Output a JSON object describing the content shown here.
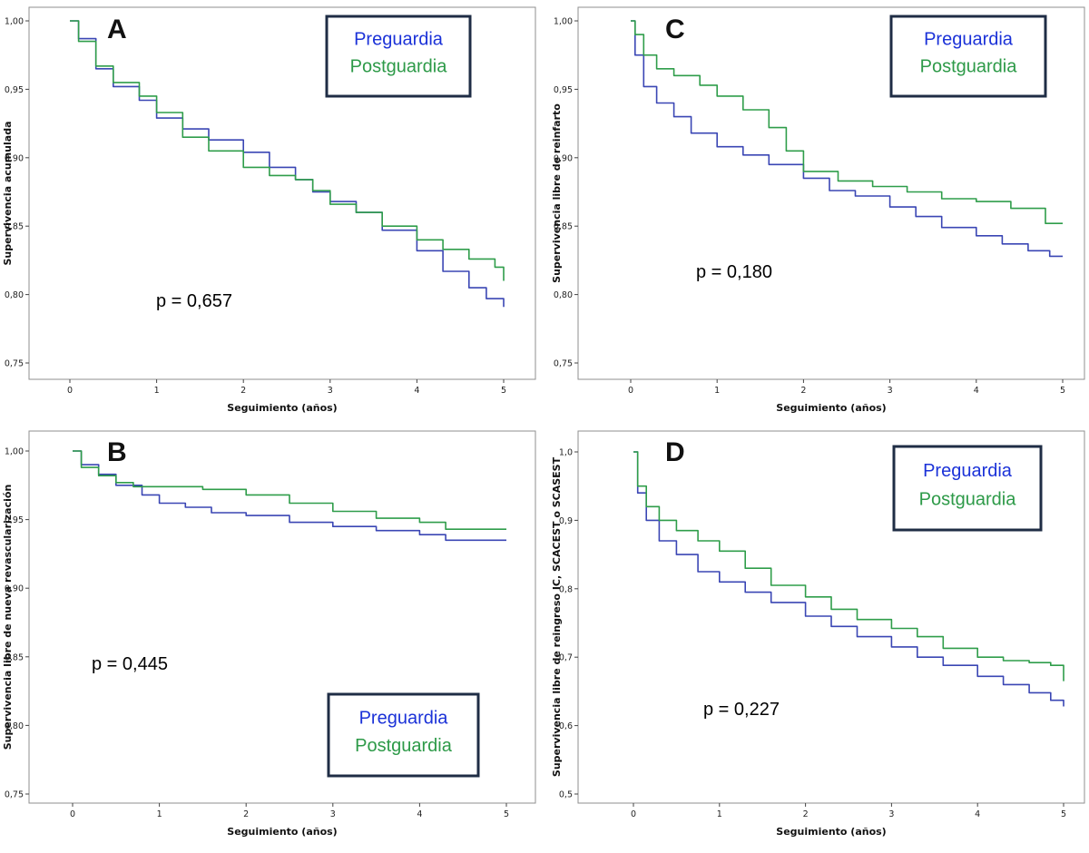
{
  "colors": {
    "pre": "#3a46b4",
    "post": "#2f9d4a",
    "pre_label": "#1b32d8",
    "post_label": "#2d9a48"
  },
  "legend": {
    "pre": "Preguardia",
    "post": "Postguardia"
  },
  "chart_data": [
    {
      "id": "A",
      "letter": "A",
      "type": "line",
      "xlabel": "Seguimiento (años)",
      "ylabel": "Supervivencia acumulada",
      "pvalue": "p = 0,657",
      "legend_position": "top-right",
      "xlim": [
        0,
        5
      ],
      "ylim": [
        0.75,
        1.0
      ],
      "xticks": [
        0,
        1,
        2,
        3,
        4,
        5
      ],
      "xtick_labels": [
        "0",
        "1",
        "2",
        "3",
        "4",
        "5"
      ],
      "yticks": [
        0.75,
        0.8,
        0.85,
        0.9,
        0.95,
        1.0
      ],
      "ytick_labels": [
        "0,75",
        "0,80",
        "0,85",
        "0,90",
        "0,95",
        "1,00"
      ],
      "series": [
        {
          "name": "Preguardia",
          "x": [
            0,
            0.1,
            0.3,
            0.5,
            0.8,
            1.0,
            1.3,
            1.6,
            2.0,
            2.3,
            2.6,
            2.8,
            3.0,
            3.3,
            3.6,
            4.0,
            4.3,
            4.6,
            4.8,
            5.0
          ],
          "y": [
            1.0,
            0.987,
            0.965,
            0.952,
            0.942,
            0.929,
            0.921,
            0.913,
            0.904,
            0.893,
            0.884,
            0.875,
            0.868,
            0.86,
            0.847,
            0.832,
            0.817,
            0.805,
            0.797,
            0.791
          ]
        },
        {
          "name": "Postguardia",
          "x": [
            0,
            0.1,
            0.3,
            0.5,
            0.8,
            1.0,
            1.3,
            1.6,
            2.0,
            2.3,
            2.6,
            2.8,
            3.0,
            3.3,
            3.6,
            4.0,
            4.3,
            4.6,
            4.9,
            5.0
          ],
          "y": [
            1.0,
            0.985,
            0.967,
            0.955,
            0.945,
            0.933,
            0.915,
            0.905,
            0.893,
            0.887,
            0.884,
            0.876,
            0.866,
            0.86,
            0.85,
            0.84,
            0.833,
            0.826,
            0.82,
            0.81
          ]
        }
      ]
    },
    {
      "id": "C",
      "letter": "C",
      "type": "line",
      "xlabel": "Seguimiento (años)",
      "ylabel": "Supervivencia libre de reinfarto",
      "pvalue": "p = 0,180",
      "legend_position": "top-right",
      "xlim": [
        0,
        5
      ],
      "ylim": [
        0.75,
        1.0
      ],
      "xticks": [
        0,
        1,
        2,
        3,
        4,
        5
      ],
      "xtick_labels": [
        "0",
        "1",
        "2",
        "3",
        "4",
        "5"
      ],
      "yticks": [
        0.75,
        0.8,
        0.85,
        0.9,
        0.95,
        1.0
      ],
      "ytick_labels": [
        "0,75",
        "0,80",
        "0,85",
        "0,90",
        "0,95",
        "1,00"
      ],
      "series": [
        {
          "name": "Preguardia",
          "x": [
            0,
            0.05,
            0.15,
            0.3,
            0.5,
            0.7,
            1.0,
            1.3,
            1.6,
            2.0,
            2.3,
            2.6,
            3.0,
            3.3,
            3.6,
            4.0,
            4.3,
            4.6,
            4.85,
            5.0
          ],
          "y": [
            1.0,
            0.975,
            0.952,
            0.94,
            0.93,
            0.918,
            0.908,
            0.902,
            0.895,
            0.885,
            0.876,
            0.872,
            0.864,
            0.857,
            0.849,
            0.843,
            0.837,
            0.832,
            0.828,
            0.828
          ]
        },
        {
          "name": "Postguardia",
          "x": [
            0,
            0.05,
            0.15,
            0.3,
            0.5,
            0.8,
            1.0,
            1.3,
            1.6,
            1.8,
            2.0,
            2.4,
            2.8,
            3.2,
            3.6,
            4.0,
            4.4,
            4.8,
            5.0
          ],
          "y": [
            1.0,
            0.99,
            0.975,
            0.965,
            0.96,
            0.953,
            0.945,
            0.935,
            0.922,
            0.905,
            0.89,
            0.883,
            0.879,
            0.875,
            0.87,
            0.868,
            0.863,
            0.852,
            0.852
          ]
        }
      ]
    },
    {
      "id": "B",
      "letter": "B",
      "type": "line",
      "xlabel": "Seguimiento (años)",
      "ylabel": "Supervivencia libre de nueva revascularización",
      "pvalue": "p = 0,445",
      "legend_position": "bottom-right",
      "xlim": [
        0,
        5
      ],
      "ylim": [
        0.75,
        1.0
      ],
      "xticks": [
        0,
        1,
        2,
        3,
        4,
        5
      ],
      "xtick_labels": [
        "0",
        "1",
        "2",
        "3",
        "4",
        "5"
      ],
      "yticks": [
        0.75,
        0.8,
        0.85,
        0.9,
        0.95,
        1.0
      ],
      "ytick_labels": [
        "0,75",
        "0,80",
        "0,85",
        "0,90",
        "0,95",
        "1,00"
      ],
      "series": [
        {
          "name": "Preguardia",
          "x": [
            0,
            0.1,
            0.3,
            0.5,
            0.8,
            1.0,
            1.3,
            1.6,
            2.0,
            2.5,
            3.0,
            3.5,
            4.0,
            4.3,
            5.0
          ],
          "y": [
            1.0,
            0.99,
            0.983,
            0.975,
            0.968,
            0.962,
            0.959,
            0.955,
            0.953,
            0.948,
            0.945,
            0.942,
            0.939,
            0.935,
            0.935
          ]
        },
        {
          "name": "Postguardia",
          "x": [
            0,
            0.1,
            0.3,
            0.5,
            0.7,
            1.0,
            1.5,
            2.0,
            2.5,
            3.0,
            3.5,
            4.0,
            4.3,
            5.0
          ],
          "y": [
            1.0,
            0.988,
            0.982,
            0.977,
            0.974,
            0.974,
            0.972,
            0.968,
            0.962,
            0.956,
            0.951,
            0.948,
            0.943,
            0.943
          ]
        }
      ]
    },
    {
      "id": "D",
      "letter": "D",
      "type": "line",
      "xlabel": "Seguimiento (años)",
      "ylabel": "Supervivencia libre de  reingreso IC, SCACEST o SCASEST",
      "pvalue": "p = 0,227",
      "legend_position": "top-right",
      "xlim": [
        0,
        5
      ],
      "ylim": [
        0.5,
        1.0
      ],
      "xticks": [
        0,
        1,
        2,
        3,
        4,
        5
      ],
      "xtick_labels": [
        "0",
        "1",
        "2",
        "3",
        "4",
        "5"
      ],
      "yticks": [
        0.5,
        0.6,
        0.7,
        0.8,
        0.9,
        1.0
      ],
      "ytick_labels": [
        "0,5",
        "0,6",
        "0,7",
        "0,8",
        "0,9",
        "1,0"
      ],
      "series": [
        {
          "name": "Preguardia",
          "x": [
            0,
            0.05,
            0.15,
            0.3,
            0.5,
            0.75,
            1.0,
            1.3,
            1.6,
            2.0,
            2.3,
            2.6,
            3.0,
            3.3,
            3.6,
            4.0,
            4.3,
            4.6,
            4.85,
            5.0
          ],
          "y": [
            1.0,
            0.94,
            0.9,
            0.87,
            0.85,
            0.825,
            0.81,
            0.795,
            0.78,
            0.76,
            0.745,
            0.73,
            0.715,
            0.7,
            0.688,
            0.672,
            0.66,
            0.648,
            0.637,
            0.628
          ]
        },
        {
          "name": "Postguardia",
          "x": [
            0,
            0.05,
            0.15,
            0.3,
            0.5,
            0.75,
            1.0,
            1.3,
            1.6,
            2.0,
            2.3,
            2.6,
            3.0,
            3.3,
            3.6,
            4.0,
            4.3,
            4.6,
            4.85,
            5.0
          ],
          "y": [
            1.0,
            0.95,
            0.92,
            0.9,
            0.885,
            0.87,
            0.855,
            0.83,
            0.805,
            0.788,
            0.77,
            0.755,
            0.742,
            0.73,
            0.713,
            0.7,
            0.695,
            0.692,
            0.688,
            0.665
          ]
        }
      ]
    }
  ]
}
